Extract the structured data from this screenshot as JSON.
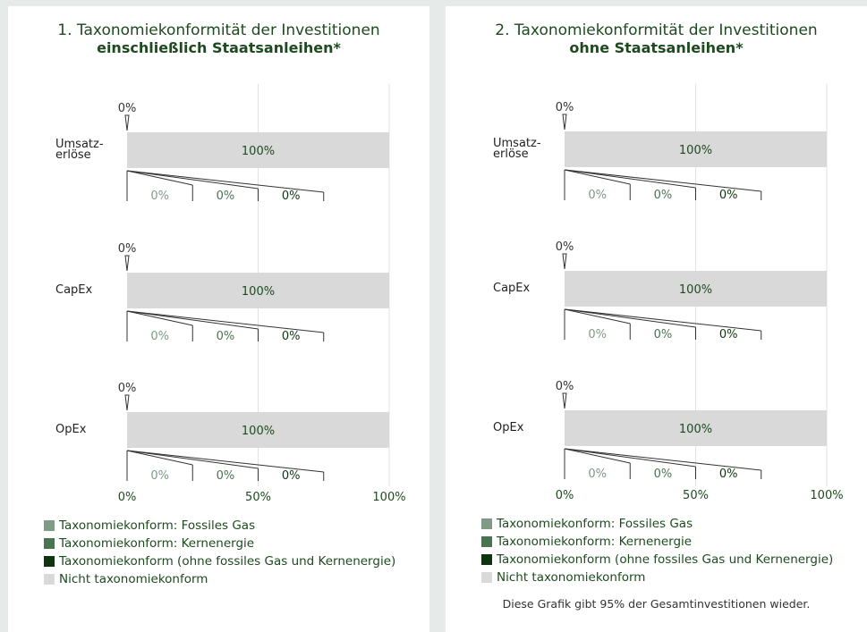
{
  "colors": {
    "fossil_gas": "#7f9b85",
    "nuclear": "#4a7350",
    "aligned_other": "#0f3510",
    "not_aligned": "#d9d9d9",
    "title": "#1e4a1f",
    "grid": "#e2e2e2"
  },
  "legend": [
    {
      "label": "Taxonomiekonform: Fossiles Gas",
      "color": "#7f9b85"
    },
    {
      "label": "Taxonomiekonform: Kernenergie",
      "color": "#4a7350"
    },
    {
      "label": "Taxonomiekonform (ohne fossiles Gas und Kernenergie)",
      "color": "#0f3510"
    },
    {
      "label": "Nicht taxonomiekonform",
      "color": "#d9d9d9"
    }
  ],
  "note": "Diese Grafik gibt 95% der Gesamtinvestitionen wieder.",
  "chart_data": [
    {
      "type": "bar",
      "title_line1": "1. Taxonomiekonformität der Investitionen",
      "title_line2": "einschließlich Staatsanleihen*",
      "xlim": [
        0,
        100
      ],
      "xticks": [
        "0%",
        "50%",
        "100%"
      ],
      "categories": [
        "Umsatz-\nerlöse",
        "CapEx",
        "OpEx"
      ],
      "series": [
        {
          "name": "Taxonomiekonform (ohne fossiles Gas und Kernenergie)",
          "values": [
            0,
            0,
            0
          ],
          "labels": [
            "0%",
            "0%",
            "0%"
          ]
        },
        {
          "name": "Nicht taxonomiekonform",
          "values": [
            100,
            100,
            100
          ],
          "labels": [
            "100%",
            "100%",
            "100%"
          ]
        },
        {
          "name": "Taxonomiekonform: Fossiles Gas",
          "values": [
            0,
            0,
            0
          ],
          "labels": [
            "0%",
            "0%",
            "0%"
          ]
        },
        {
          "name": "Taxonomiekonform: Kernenergie",
          "values": [
            0,
            0,
            0
          ],
          "labels": [
            "0%",
            "0%",
            "0%"
          ]
        },
        {
          "name": "Taxonomiekonform (ohne fossiles Gas und Kernenergie)",
          "values": [
            0,
            0,
            0
          ],
          "labels": [
            "0%",
            "0%",
            "0%"
          ]
        }
      ]
    },
    {
      "type": "bar",
      "title_line1": "2. Taxonomiekonformität der Investitionen",
      "title_line2": "ohne Staatsanleihen*",
      "xlim": [
        0,
        100
      ],
      "xticks": [
        "0%",
        "50%",
        "100%"
      ],
      "categories": [
        "Umsatz-\nerlöse",
        "CapEx",
        "OpEx"
      ],
      "series": [
        {
          "name": "Taxonomiekonform (ohne fossiles Gas und Kernenergie)",
          "values": [
            0,
            0,
            0
          ],
          "labels": [
            "0%",
            "0%",
            "0%"
          ]
        },
        {
          "name": "Nicht taxonomiekonform",
          "values": [
            100,
            100,
            100
          ],
          "labels": [
            "100%",
            "100%",
            "100%"
          ]
        },
        {
          "name": "Taxonomiekonform: Fossiles Gas",
          "values": [
            0,
            0,
            0
          ],
          "labels": [
            "0%",
            "0%",
            "0%"
          ]
        },
        {
          "name": "Taxonomiekonform: Kernenergie",
          "values": [
            0,
            0,
            0
          ],
          "labels": [
            "0%",
            "0%",
            "0%"
          ]
        },
        {
          "name": "Taxonomiekonform (ohne fossiles Gas und Kernenergie)",
          "values": [
            0,
            0,
            0
          ],
          "labels": [
            "0%",
            "0%",
            "0%"
          ]
        }
      ]
    }
  ]
}
